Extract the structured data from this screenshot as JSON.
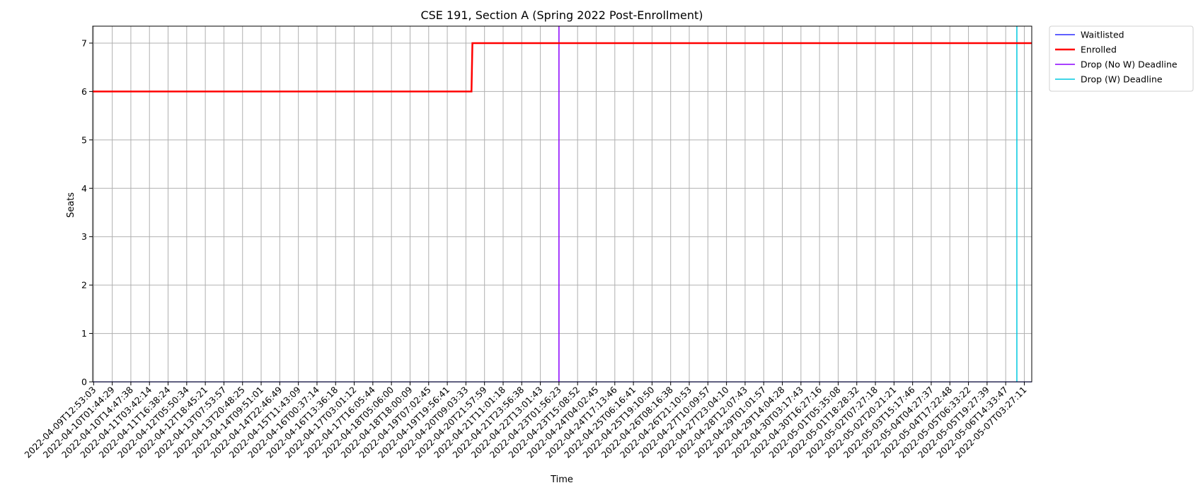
{
  "chart_data": {
    "type": "line",
    "title": "CSE 191, Section A (Spring 2022 Post-Enrollment)",
    "xlabel": "Time",
    "ylabel": "Seats",
    "ylim": [
      0,
      7.35
    ],
    "yticks": [
      0,
      1,
      2,
      3,
      4,
      5,
      6,
      7
    ],
    "xticks": [
      "2022-04-09T12:53:03",
      "2022-04-10T01:44:29",
      "2022-04-10T14:47:38",
      "2022-04-11T03:42:14",
      "2022-04-11T16:38:24",
      "2022-04-12T05:50:34",
      "2022-04-12T18:45:21",
      "2022-04-13T07:53:57",
      "2022-04-13T20:48:25",
      "2022-04-14T09:51:01",
      "2022-04-14T22:46:49",
      "2022-04-15T11:43:09",
      "2022-04-16T00:37:14",
      "2022-04-16T13:36:18",
      "2022-04-17T03:01:12",
      "2022-04-17T16:05:44",
      "2022-04-18T05:06:00",
      "2022-04-18T18:00:09",
      "2022-04-19T07:02:45",
      "2022-04-19T19:56:41",
      "2022-04-20T09:03:33",
      "2022-04-20T21:57:59",
      "2022-04-21T11:01:18",
      "2022-04-21T23:56:38",
      "2022-04-22T13:01:43",
      "2022-04-23T01:56:23",
      "2022-04-23T15:08:52",
      "2022-04-24T04:02:45",
      "2022-04-24T17:13:46",
      "2022-04-25T06:16:41",
      "2022-04-25T19:10:50",
      "2022-04-26T08:16:38",
      "2022-04-26T21:10:53",
      "2022-04-27T10:09:57",
      "2022-04-27T23:04:10",
      "2022-04-28T12:07:43",
      "2022-04-29T01:01:57",
      "2022-04-29T14:04:28",
      "2022-04-30T03:17:43",
      "2022-04-30T16:27:16",
      "2022-05-01T05:35:08",
      "2022-05-01T18:28:32",
      "2022-05-02T07:27:18",
      "2022-05-02T20:21:21",
      "2022-05-03T15:17:46",
      "2022-05-04T04:27:37",
      "2022-05-04T17:22:48",
      "2022-05-05T06:33:22",
      "2022-05-05T19:27:39",
      "2022-05-06T14:33:47",
      "2022-05-07T03:27:11"
    ],
    "x_range_ticks": [
      -0.05,
      50.4
    ],
    "grid": true,
    "legend": "outside-top-right",
    "series": [
      {
        "name": "Waitlisted",
        "color": "#0000ff",
        "x": [
          -0.05,
          50.4
        ],
        "y": [
          0,
          0
        ]
      },
      {
        "name": "Enrolled",
        "color": "#ff0000",
        "x": [
          -0.05,
          20.3,
          20.35,
          50.4
        ],
        "y": [
          6,
          6,
          7,
          7
        ]
      }
    ],
    "vlines": [
      {
        "name": "Drop (No W) Deadline",
        "color": "#8b00ff",
        "x": 25.0
      },
      {
        "name": "Drop (W) Deadline",
        "color": "#00c8e0",
        "x": 49.6
      }
    ]
  }
}
